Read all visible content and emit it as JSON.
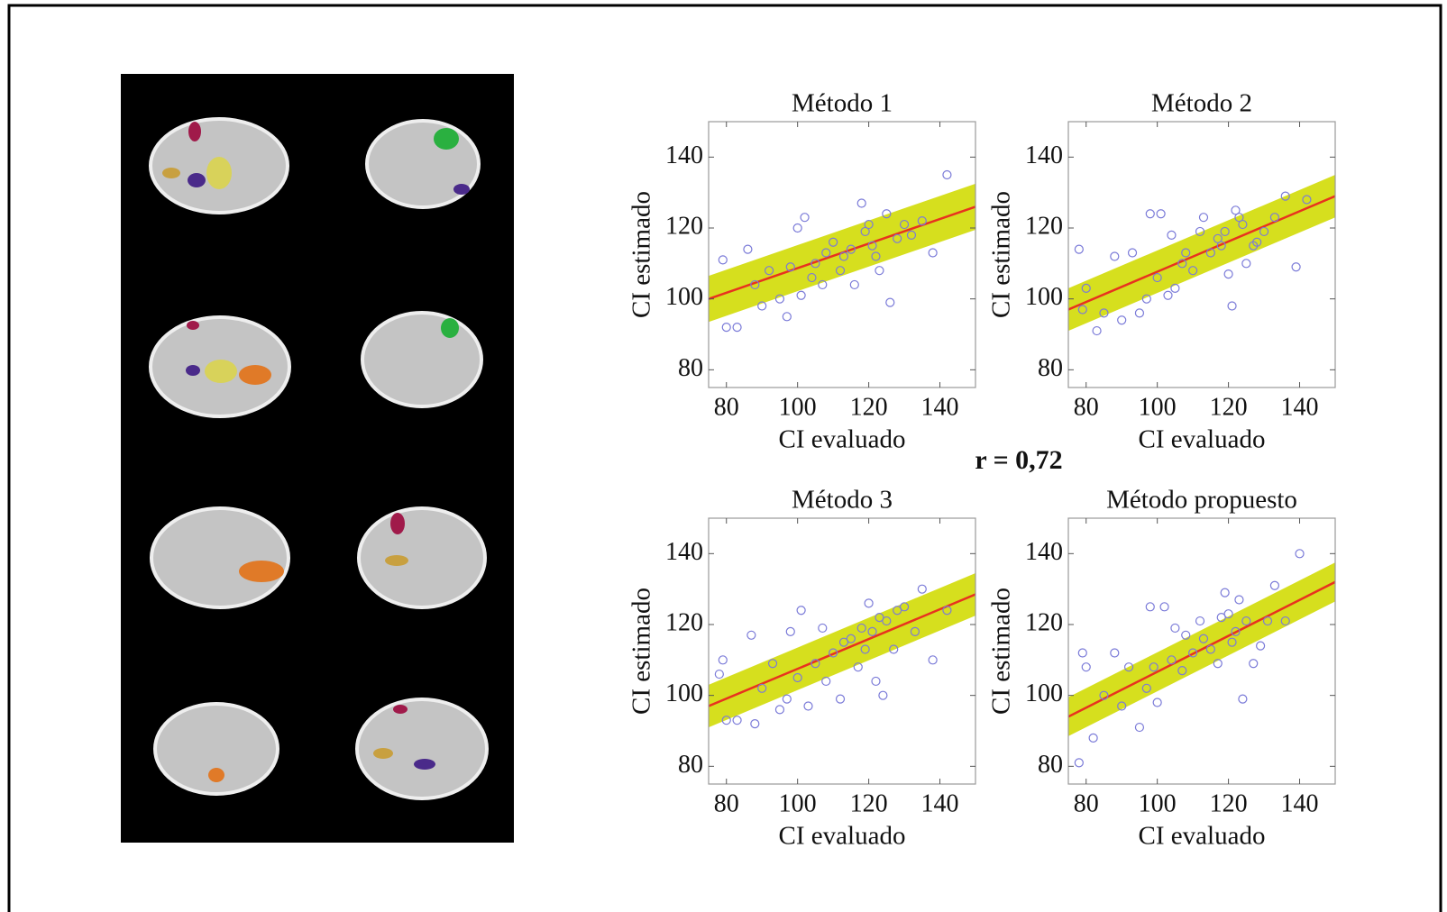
{
  "annotation": "r = 0,72",
  "chart_data": [
    {
      "type": "scatter",
      "title": "Método 1",
      "xlabel": "CI evaluado",
      "ylabel": "CI estimado",
      "xlim": [
        75,
        150
      ],
      "ylim": [
        75,
        150
      ],
      "xticks": [
        80,
        100,
        120,
        140
      ],
      "yticks": [
        80,
        100,
        120,
        140
      ],
      "points": {
        "color": "#7a7ad8",
        "x": [
          79,
          80,
          83,
          86,
          88,
          90,
          92,
          95,
          97,
          98,
          100,
          101,
          102,
          104,
          105,
          107,
          108,
          110,
          112,
          113,
          115,
          116,
          118,
          119,
          120,
          121,
          122,
          123,
          125,
          126,
          128,
          130,
          132,
          135,
          138,
          142
        ],
        "y": [
          111,
          92,
          92,
          114,
          104,
          98,
          108,
          100,
          95,
          109,
          120,
          101,
          123,
          106,
          110,
          104,
          113,
          116,
          108,
          112,
          114,
          104,
          127,
          119,
          121,
          115,
          112,
          108,
          124,
          99,
          117,
          121,
          118,
          122,
          113,
          135
        ]
      },
      "fit": {
        "color": "#e8321e",
        "x": [
          75,
          150
        ],
        "y": [
          100,
          126
        ]
      },
      "band": {
        "color": "#d6df1e",
        "x": [
          75,
          150
        ],
        "lower": [
          93.5,
          119.5
        ],
        "upper": [
          106.5,
          132.5
        ]
      }
    },
    {
      "type": "scatter",
      "title": "Método 2",
      "xlabel": "CI evaluado",
      "ylabel": "CI estimado",
      "xlim": [
        75,
        150
      ],
      "ylim": [
        75,
        150
      ],
      "xticks": [
        80,
        100,
        120,
        140
      ],
      "yticks": [
        80,
        100,
        120,
        140
      ],
      "points": {
        "color": "#7a7ad8",
        "x": [
          78,
          79,
          80,
          83,
          85,
          88,
          90,
          93,
          95,
          97,
          98,
          100,
          101,
          103,
          104,
          105,
          107,
          108,
          110,
          112,
          113,
          115,
          117,
          118,
          119,
          120,
          121,
          122,
          123,
          124,
          125,
          127,
          128,
          130,
          133,
          136,
          139,
          142
        ],
        "y": [
          114,
          97,
          103,
          91,
          96,
          112,
          94,
          113,
          96,
          100,
          124,
          106,
          124,
          101,
          118,
          103,
          110,
          113,
          108,
          119,
          123,
          113,
          117,
          115,
          119,
          107,
          98,
          125,
          123,
          121,
          110,
          115,
          116,
          119,
          123,
          129,
          109,
          128
        ]
      },
      "fit": {
        "color": "#e8321e",
        "x": [
          75,
          150
        ],
        "y": [
          97,
          129
        ]
      },
      "band": {
        "color": "#d6df1e",
        "x": [
          75,
          150
        ],
        "lower": [
          91,
          123
        ],
        "upper": [
          103,
          135
        ]
      }
    },
    {
      "type": "scatter",
      "title": "Método 3",
      "xlabel": "CI evaluado",
      "ylabel": "CI estimado",
      "xlim": [
        75,
        150
      ],
      "ylim": [
        75,
        150
      ],
      "xticks": [
        80,
        100,
        120,
        140
      ],
      "yticks": [
        80,
        100,
        120,
        140
      ],
      "points": {
        "color": "#7a7ad8",
        "x": [
          78,
          79,
          80,
          83,
          87,
          88,
          90,
          93,
          95,
          97,
          98,
          100,
          101,
          103,
          105,
          107,
          108,
          110,
          112,
          113,
          115,
          117,
          118,
          119,
          120,
          121,
          122,
          123,
          124,
          125,
          127,
          128,
          130,
          133,
          135,
          138,
          142
        ],
        "y": [
          106,
          110,
          93,
          93,
          117,
          92,
          102,
          109,
          96,
          99,
          118,
          105,
          124,
          97,
          109,
          119,
          104,
          112,
          99,
          115,
          116,
          108,
          119,
          113,
          126,
          118,
          104,
          122,
          100,
          121,
          113,
          124,
          125,
          118,
          130,
          110,
          124
        ]
      },
      "fit": {
        "color": "#e8321e",
        "x": [
          75,
          150
        ],
        "y": [
          97,
          128.5
        ]
      },
      "band": {
        "color": "#d6df1e",
        "x": [
          75,
          150
        ],
        "lower": [
          91,
          122.5
        ],
        "upper": [
          103,
          134.5
        ]
      }
    },
    {
      "type": "scatter",
      "title": "Método propuesto",
      "xlabel": "CI evaluado",
      "ylabel": "CI estimado",
      "xlim": [
        75,
        150
      ],
      "ylim": [
        75,
        150
      ],
      "xticks": [
        80,
        100,
        120,
        140
      ],
      "yticks": [
        80,
        100,
        120,
        140
      ],
      "points": {
        "color": "#7a7ad8",
        "x": [
          78,
          79,
          80,
          82,
          85,
          88,
          90,
          92,
          95,
          97,
          98,
          99,
          100,
          102,
          104,
          105,
          107,
          108,
          110,
          112,
          113,
          115,
          117,
          118,
          119,
          120,
          121,
          122,
          123,
          124,
          125,
          127,
          129,
          131,
          133,
          136,
          140
        ],
        "y": [
          81,
          112,
          108,
          88,
          100,
          112,
          97,
          108,
          91,
          102,
          125,
          108,
          98,
          125,
          110,
          119,
          107,
          117,
          112,
          121,
          116,
          113,
          109,
          122,
          129,
          123,
          115,
          118,
          127,
          99,
          121,
          109,
          114,
          121,
          131,
          121,
          140
        ]
      },
      "fit": {
        "color": "#e8321e",
        "x": [
          75,
          150
        ],
        "y": [
          94,
          132
        ]
      },
      "band": {
        "color": "#d6df1e",
        "x": [
          75,
          150
        ],
        "lower": [
          88.5,
          126.5
        ],
        "upper": [
          99.5,
          137.5
        ]
      }
    }
  ]
}
